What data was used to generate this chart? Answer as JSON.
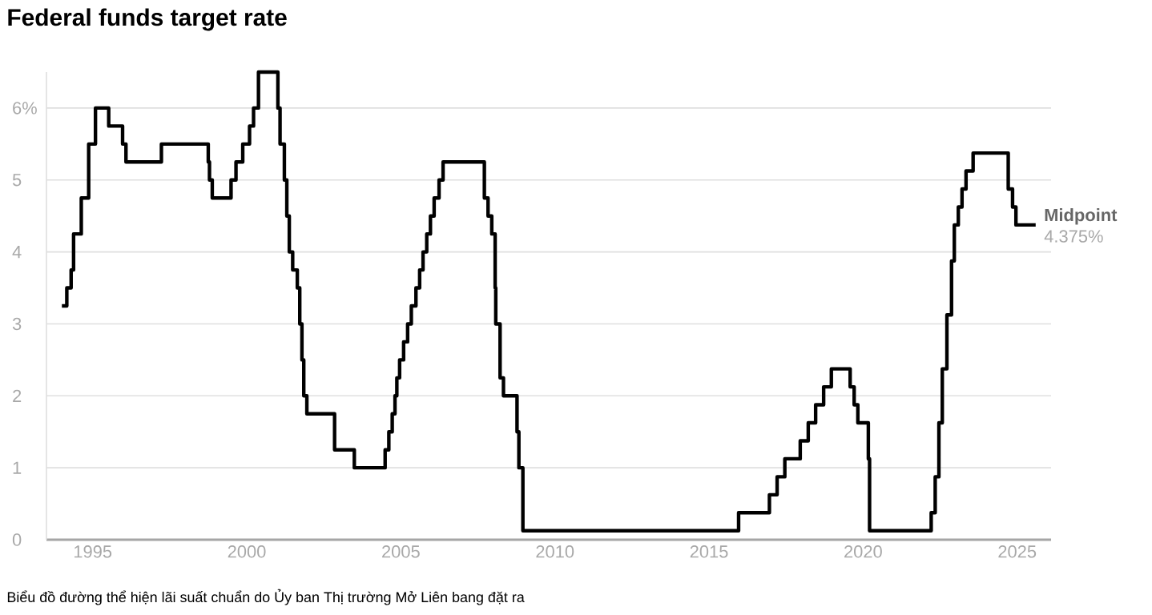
{
  "chart_data": {
    "type": "step",
    "title": "Federal funds target rate",
    "x": [
      1994.0,
      1994.16,
      1994.3,
      1994.38,
      1994.63,
      1994.87,
      1995.09,
      1995.52,
      1995.97,
      1996.08,
      1997.23,
      1998.75,
      1998.79,
      1998.88,
      1999.49,
      1999.65,
      1999.87,
      2000.09,
      2000.22,
      2000.38,
      2001.01,
      2001.08,
      2001.22,
      2001.3,
      2001.38,
      2001.49,
      2001.64,
      2001.72,
      2001.79,
      2001.85,
      2001.95,
      2002.85,
      2003.49,
      2004.49,
      2004.61,
      2004.72,
      2004.81,
      2004.87,
      2004.96,
      2005.09,
      2005.22,
      2005.34,
      2005.49,
      2005.61,
      2005.72,
      2005.84,
      2005.96,
      2006.08,
      2006.24,
      2006.37,
      2007.71,
      2007.83,
      2007.95,
      2008.06,
      2008.08,
      2008.22,
      2008.33,
      2008.77,
      2008.83,
      2008.96,
      2015.96,
      2016.96,
      2017.21,
      2017.46,
      2017.96,
      2018.22,
      2018.46,
      2018.72,
      2018.97,
      2019.58,
      2019.71,
      2019.83,
      2020.17,
      2020.21,
      2022.21,
      2022.34,
      2022.46,
      2022.57,
      2022.72,
      2022.87,
      2022.96,
      2023.09,
      2023.21,
      2023.34,
      2023.57,
      2024.71,
      2024.85,
      2024.96,
      2025.6
    ],
    "values": [
      3.25,
      3.5,
      3.75,
      4.25,
      4.75,
      5.5,
      6.0,
      5.75,
      5.5,
      5.25,
      5.5,
      5.25,
      5.0,
      4.75,
      5.0,
      5.25,
      5.5,
      5.75,
      6.0,
      6.5,
      6.0,
      5.5,
      5.0,
      4.5,
      4.0,
      3.75,
      3.5,
      3.0,
      2.5,
      2.0,
      1.75,
      1.25,
      1.0,
      1.25,
      1.5,
      1.75,
      2.0,
      2.25,
      2.5,
      2.75,
      3.0,
      3.25,
      3.5,
      3.75,
      4.0,
      4.25,
      4.5,
      4.75,
      5.0,
      5.25,
      4.75,
      4.5,
      4.25,
      3.5,
      3.0,
      2.25,
      2.0,
      1.5,
      1.0,
      0.125,
      0.375,
      0.625,
      0.875,
      1.125,
      1.375,
      1.625,
      1.875,
      2.125,
      2.375,
      2.125,
      1.875,
      1.625,
      1.125,
      0.125,
      0.375,
      0.875,
      1.625,
      2.375,
      3.125,
      3.875,
      4.375,
      4.625,
      4.875,
      5.125,
      5.375,
      4.875,
      4.625,
      4.375,
      4.375
    ],
    "color": "#000000",
    "xlim": [
      1993.5,
      2026.1
    ],
    "ylim": [
      0,
      6.5
    ],
    "xticks": [
      1995,
      2000,
      2005,
      2010,
      2015,
      2020,
      2025
    ],
    "yticks": [
      0,
      1,
      2,
      3,
      4,
      5,
      {
        "value": 6,
        "label": "6%"
      }
    ],
    "grid": "y",
    "annotations": [
      {
        "text": "Midpoint",
        "x": 2025.6,
        "y": 4.375
      },
      {
        "text": "4.375%",
        "x": 2025.6,
        "y": 4.375
      },
      "Biểu đồ đường thể hiện lãi suất chuẩn do Ủy ban Thị trường Mở Liên bang đặt ra"
    ]
  }
}
